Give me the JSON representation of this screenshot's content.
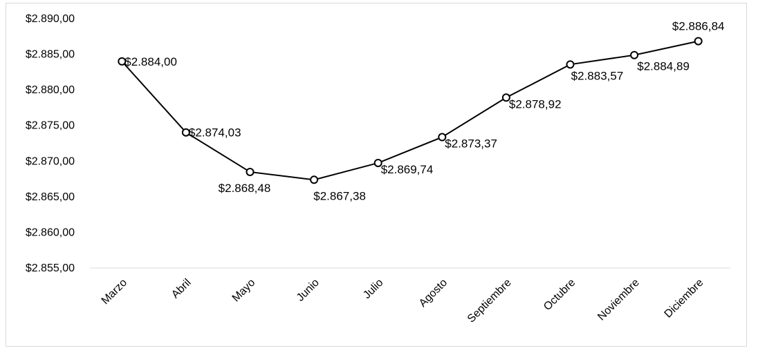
{
  "chart_data": {
    "type": "line",
    "title": "",
    "xlabel": "",
    "ylabel": "",
    "categories": [
      "Marzo",
      "Abril",
      "Mayo",
      "Junio",
      "Julio",
      "Agosto",
      "Septiembre",
      "Octubre",
      "Noviembre",
      "Diciembre"
    ],
    "series": [
      {
        "values": [
          2884.0,
          2874.03,
          2868.48,
          2867.38,
          2869.74,
          2873.37,
          2878.92,
          2883.57,
          2884.89,
          2886.84
        ],
        "labels": [
          "$2.884,00",
          "$2.874,03",
          "$2.868,48",
          "$2.867,38",
          "$2.869,74",
          "$2.873,37",
          "$2.878,92",
          "$2.883,57",
          "$2.884,89",
          "$2.886,84"
        ],
        "color": "#000000"
      }
    ],
    "ylim": [
      2855,
      2890
    ],
    "yticks": [
      2855,
      2860,
      2865,
      2870,
      2875,
      2880,
      2885,
      2890
    ],
    "ytick_labels": [
      "$2.855,00",
      "$2.860,00",
      "$2.865,00",
      "$2.870,00",
      "$2.875,00",
      "$2.880,00",
      "$2.885,00",
      "$2.890,00"
    ],
    "grid": false,
    "legend": "none",
    "axis_line_color": "#d9d9d9",
    "marker": "open-circle"
  }
}
